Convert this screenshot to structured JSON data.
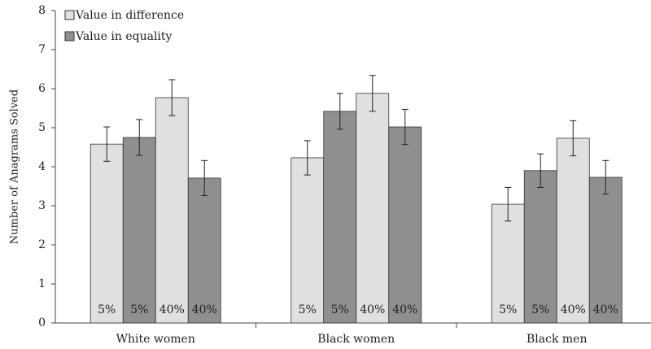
{
  "chart_data": {
    "type": "bar",
    "y_label": "Number of Anagrams  Solved",
    "categories": [
      "White women",
      "Black women",
      "Black men"
    ],
    "conditions": [
      "5%",
      "40%"
    ],
    "series": [
      {
        "name": "Value in difference",
        "color": "#e0e0e0",
        "values": [
          [
            4.58,
            5.77
          ],
          [
            4.23,
            5.88
          ],
          [
            3.04,
            4.73
          ]
        ],
        "errors": [
          [
            0.44,
            0.46
          ],
          [
            0.44,
            0.46
          ],
          [
            0.43,
            0.45
          ]
        ]
      },
      {
        "name": "Value in equality",
        "color": "#8f8f8f",
        "values": [
          [
            4.75,
            3.71
          ],
          [
            5.42,
            5.02
          ],
          [
            3.9,
            3.73
          ]
        ],
        "errors": [
          [
            0.46,
            0.45
          ],
          [
            0.46,
            0.45
          ],
          [
            0.43,
            0.43
          ]
        ]
      }
    ],
    "ylim": [
      0,
      8
    ],
    "yticks": [
      0,
      1,
      2,
      3,
      4,
      5,
      6,
      7,
      8
    ]
  }
}
